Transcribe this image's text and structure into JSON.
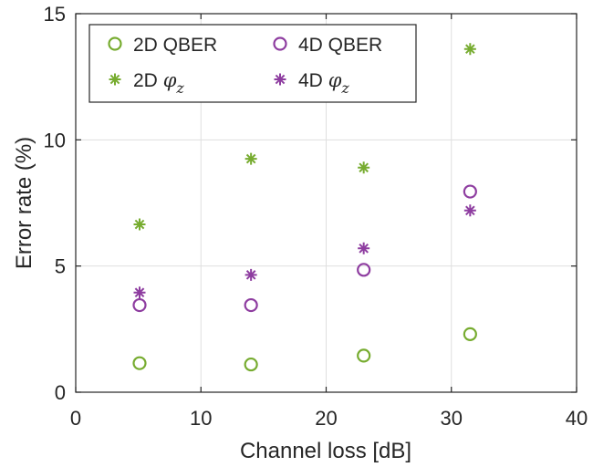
{
  "chart_data": {
    "type": "scatter",
    "xlabel": "Channel loss [dB]",
    "ylabel": "Error rate (%)",
    "xlim": [
      0,
      40
    ],
    "ylim": [
      0,
      15
    ],
    "xticks": [
      0,
      10,
      20,
      30,
      40
    ],
    "yticks": [
      0,
      5,
      10,
      15
    ],
    "grid": true,
    "legend_position": "top-left",
    "legend_columns": 2,
    "series": [
      {
        "name": "2D QBER",
        "marker": "circle",
        "color": "#77ac30",
        "x": [
          5.1,
          14.0,
          23.0,
          31.5
        ],
        "y": [
          1.15,
          1.1,
          1.45,
          2.3
        ]
      },
      {
        "name": "4D QBER",
        "marker": "circle",
        "color": "#8e3da0",
        "x": [
          5.1,
          14.0,
          23.0,
          31.5
        ],
        "y": [
          3.45,
          3.45,
          4.85,
          7.95
        ]
      },
      {
        "name": "2D φz",
        "marker": "star",
        "color": "#77ac30",
        "x": [
          5.1,
          14.0,
          23.0,
          31.5
        ],
        "y": [
          6.65,
          9.25,
          8.9,
          13.6
        ]
      },
      {
        "name": "4D φz",
        "marker": "star",
        "color": "#8e3da0",
        "x": [
          5.1,
          14.0,
          23.0,
          31.5
        ],
        "y": [
          3.95,
          4.65,
          5.7,
          7.2
        ]
      }
    ]
  },
  "legend": [
    {
      "prefix": "2D QBER",
      "symbol": "",
      "subscript": "",
      "marker": "circle",
      "color": "#77ac30"
    },
    {
      "prefix": "4D QBER",
      "symbol": "",
      "subscript": "",
      "marker": "circle",
      "color": "#8e3da0"
    },
    {
      "prefix": "2D ",
      "symbol": "φ",
      "subscript": "z",
      "marker": "star",
      "color": "#77ac30"
    },
    {
      "prefix": "4D ",
      "symbol": "φ",
      "subscript": "z",
      "marker": "star",
      "color": "#8e3da0"
    }
  ]
}
